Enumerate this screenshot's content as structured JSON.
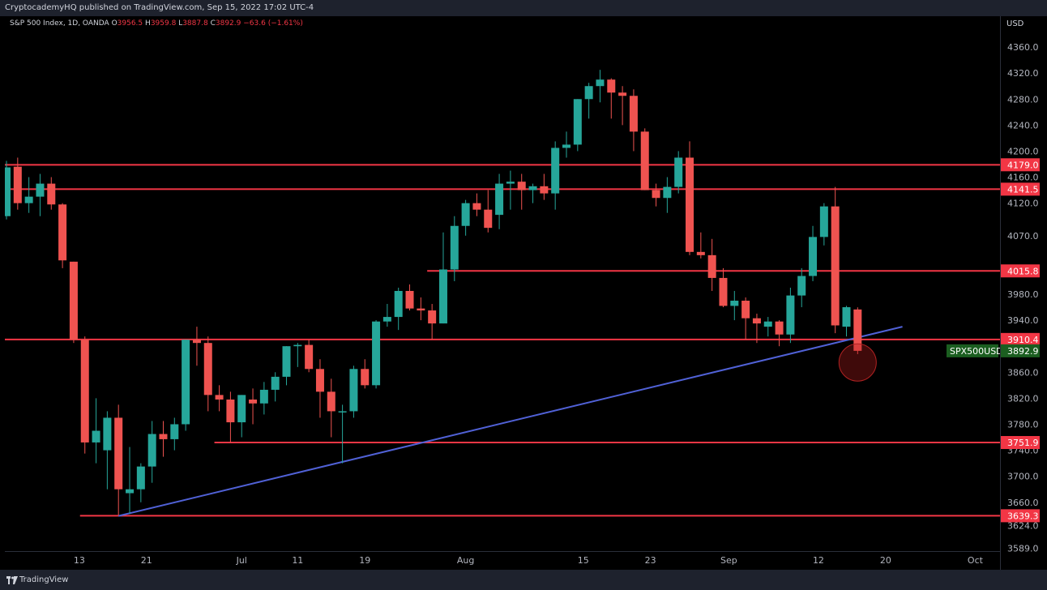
{
  "publisher": "CryptocademyHQ published on TradingView.com, Sep 15, 2022 17:02 UTC-4",
  "footer_brand": "TradingView",
  "currency": "USD",
  "legend": {
    "symbol": "S&P 500 Index, 1D, OANDA",
    "o_label": "O",
    "o": "3956.5",
    "h_label": "H",
    "h": "3959.8",
    "l_label": "L",
    "l": "3887.8",
    "c_label": "C",
    "c": "3892.9",
    "change": "−63.6 (−1.61%)"
  },
  "colors": {
    "up": "#26a69a",
    "down": "#ef5350",
    "level": "#f23645",
    "trendline": "#5061d6",
    "current_tag": "#1b5e20"
  },
  "chart_data": {
    "type": "candlestick",
    "symbol": "SPX500USD",
    "timeframe": "1D",
    "ylim": [
      3560,
      4395
    ],
    "y_ticks": [
      "4360.0",
      "4320.0",
      "4280.0",
      "4240.0",
      "4200.0",
      "4160.0",
      "4120.0",
      "4070.0",
      "3980.0",
      "3940.0",
      "3860.0",
      "3820.0",
      "3780.0",
      "3740.0",
      "3700.0",
      "3660.0",
      "3624.0",
      "3589.0"
    ],
    "x_ticks": [
      "13",
      "21",
      "Jul",
      "11",
      "19",
      "Aug",
      "15",
      "23",
      "Sep",
      "12",
      "20",
      "Oct"
    ],
    "x_tick_index": [
      6.5,
      12.5,
      21.0,
      26.0,
      32.0,
      41.0,
      51.5,
      57.5,
      64.5,
      72.5,
      78.5,
      86.5
    ],
    "candles": [
      {
        "o": 4100,
        "h": 4185,
        "l": 4095,
        "c": 4175
      },
      {
        "o": 4176,
        "h": 4190,
        "l": 4110,
        "c": 4120
      },
      {
        "o": 4120,
        "h": 4160,
        "l": 4105,
        "c": 4130
      },
      {
        "o": 4130,
        "h": 4165,
        "l": 4100,
        "c": 4150
      },
      {
        "o": 4150,
        "h": 4160,
        "l": 4110,
        "c": 4118
      },
      {
        "o": 4118,
        "h": 4120,
        "l": 4020,
        "c": 4032
      },
      {
        "o": 4030,
        "h": 4030,
        "l": 3905,
        "c": 3910
      },
      {
        "o": 3910,
        "h": 3915,
        "l": 3735,
        "c": 3752
      },
      {
        "o": 3752,
        "h": 3820,
        "l": 3720,
        "c": 3770
      },
      {
        "o": 3740,
        "h": 3800,
        "l": 3680,
        "c": 3790
      },
      {
        "o": 3790,
        "h": 3810,
        "l": 3640,
        "c": 3680
      },
      {
        "o": 3674,
        "h": 3745,
        "l": 3642,
        "c": 3680
      },
      {
        "o": 3680,
        "h": 3720,
        "l": 3660,
        "c": 3715
      },
      {
        "o": 3715,
        "h": 3785,
        "l": 3690,
        "c": 3765
      },
      {
        "o": 3765,
        "h": 3785,
        "l": 3730,
        "c": 3757
      },
      {
        "o": 3757,
        "h": 3790,
        "l": 3740,
        "c": 3780
      },
      {
        "o": 3780,
        "h": 3910,
        "l": 3770,
        "c": 3910
      },
      {
        "o": 3910,
        "h": 3930,
        "l": 3870,
        "c": 3905
      },
      {
        "o": 3905,
        "h": 3915,
        "l": 3800,
        "c": 3825
      },
      {
        "o": 3825,
        "h": 3840,
        "l": 3800,
        "c": 3818
      },
      {
        "o": 3818,
        "h": 3830,
        "l": 3752,
        "c": 3783
      },
      {
        "o": 3783,
        "h": 3825,
        "l": 3760,
        "c": 3825
      },
      {
        "o": 3818,
        "h": 3835,
        "l": 3780,
        "c": 3812
      },
      {
        "o": 3812,
        "h": 3845,
        "l": 3795,
        "c": 3833
      },
      {
        "o": 3833,
        "h": 3860,
        "l": 3815,
        "c": 3853
      },
      {
        "o": 3853,
        "h": 3900,
        "l": 3840,
        "c": 3900
      },
      {
        "o": 3900,
        "h": 3905,
        "l": 3868,
        "c": 3902
      },
      {
        "o": 3902,
        "h": 3910,
        "l": 3860,
        "c": 3865
      },
      {
        "o": 3865,
        "h": 3880,
        "l": 3790,
        "c": 3830
      },
      {
        "o": 3830,
        "h": 3850,
        "l": 3760,
        "c": 3800
      },
      {
        "o": 3800,
        "h": 3810,
        "l": 3720,
        "c": 3800
      },
      {
        "o": 3800,
        "h": 3870,
        "l": 3790,
        "c": 3865
      },
      {
        "o": 3865,
        "h": 3880,
        "l": 3835,
        "c": 3840
      },
      {
        "o": 3840,
        "h": 3940,
        "l": 3835,
        "c": 3938
      },
      {
        "o": 3938,
        "h": 3965,
        "l": 3930,
        "c": 3945
      },
      {
        "o": 3945,
        "h": 3990,
        "l": 3925,
        "c": 3985
      },
      {
        "o": 3985,
        "h": 3995,
        "l": 3955,
        "c": 3958
      },
      {
        "o": 3958,
        "h": 3975,
        "l": 3940,
        "c": 3955
      },
      {
        "o": 3955,
        "h": 3965,
        "l": 3910,
        "c": 3935
      },
      {
        "o": 3935,
        "h": 4075,
        "l": 3935,
        "c": 4018
      },
      {
        "o": 4018,
        "h": 4100,
        "l": 4000,
        "c": 4085
      },
      {
        "o": 4085,
        "h": 4125,
        "l": 4070,
        "c": 4120
      },
      {
        "o": 4120,
        "h": 4135,
        "l": 4100,
        "c": 4110
      },
      {
        "o": 4110,
        "h": 4140,
        "l": 4075,
        "c": 4082
      },
      {
        "o": 4102,
        "h": 4165,
        "l": 4080,
        "c": 4150
      },
      {
        "o": 4150,
        "h": 4170,
        "l": 4110,
        "c": 4153
      },
      {
        "o": 4153,
        "h": 4165,
        "l": 4110,
        "c": 4140
      },
      {
        "o": 4140,
        "h": 4150,
        "l": 4120,
        "c": 4146
      },
      {
        "o": 4146,
        "h": 4165,
        "l": 4125,
        "c": 4135
      },
      {
        "o": 4135,
        "h": 4215,
        "l": 4110,
        "c": 4205
      },
      {
        "o": 4205,
        "h": 4230,
        "l": 4190,
        "c": 4210
      },
      {
        "o": 4210,
        "h": 4280,
        "l": 4200,
        "c": 4280
      },
      {
        "o": 4280,
        "h": 4305,
        "l": 4250,
        "c": 4300
      },
      {
        "o": 4300,
        "h": 4325,
        "l": 4275,
        "c": 4310
      },
      {
        "o": 4310,
        "h": 4312,
        "l": 4250,
        "c": 4290
      },
      {
        "o": 4290,
        "h": 4300,
        "l": 4240,
        "c": 4285
      },
      {
        "o": 4285,
        "h": 4295,
        "l": 4200,
        "c": 4230
      },
      {
        "o": 4230,
        "h": 4235,
        "l": 4140,
        "c": 4140
      },
      {
        "o": 4140,
        "h": 4150,
        "l": 4115,
        "c": 4128
      },
      {
        "o": 4128,
        "h": 4160,
        "l": 4105,
        "c": 4145
      },
      {
        "o": 4145,
        "h": 4200,
        "l": 4135,
        "c": 4190
      },
      {
        "o": 4190,
        "h": 4215,
        "l": 4040,
        "c": 4045
      },
      {
        "o": 4045,
        "h": 4075,
        "l": 4035,
        "c": 4040
      },
      {
        "o": 4040,
        "h": 4065,
        "l": 3985,
        "c": 4005
      },
      {
        "o": 4005,
        "h": 4020,
        "l": 3960,
        "c": 3962
      },
      {
        "o": 3962,
        "h": 3985,
        "l": 3940,
        "c": 3970
      },
      {
        "o": 3970,
        "h": 3975,
        "l": 3910,
        "c": 3943
      },
      {
        "o": 3943,
        "h": 3950,
        "l": 3905,
        "c": 3935
      },
      {
        "o": 3930,
        "h": 3945,
        "l": 3915,
        "c": 3938
      },
      {
        "o": 3938,
        "h": 3940,
        "l": 3900,
        "c": 3918
      },
      {
        "o": 3918,
        "h": 3990,
        "l": 3905,
        "c": 3978
      },
      {
        "o": 3978,
        "h": 4020,
        "l": 3960,
        "c": 4008
      },
      {
        "o": 4008,
        "h": 4085,
        "l": 4000,
        "c": 4068
      },
      {
        "o": 4068,
        "h": 4120,
        "l": 4055,
        "c": 4115
      },
      {
        "o": 4115,
        "h": 4145,
        "l": 3920,
        "c": 3932
      },
      {
        "o": 3930,
        "h": 3962,
        "l": 3915,
        "c": 3960
      },
      {
        "o": 3956.5,
        "h": 3959.8,
        "l": 3887.8,
        "c": 3892.9
      }
    ],
    "levels": [
      {
        "price": 4179.0,
        "label": "4179.0",
        "from": 0
      },
      {
        "price": 4141.5,
        "label": "4141.5",
        "from": 0
      },
      {
        "price": 4015.8,
        "label": "4015.8",
        "from": 38
      },
      {
        "price": 3910.4,
        "label": "3910.4",
        "from": 0
      },
      {
        "price": 3751.9,
        "label": "3751.9",
        "from": 19
      },
      {
        "price": 3639.3,
        "label": "3639.3",
        "from": 7
      }
    ],
    "current_price": {
      "symbol": "SPX500USD",
      "label": "3892.9",
      "price": 3892.9
    },
    "trendline": {
      "from": {
        "index": 10,
        "price": 3639
      },
      "to": {
        "index": 80,
        "price": 3930
      }
    },
    "highlight": {
      "index": 76,
      "price": 3875
    }
  }
}
